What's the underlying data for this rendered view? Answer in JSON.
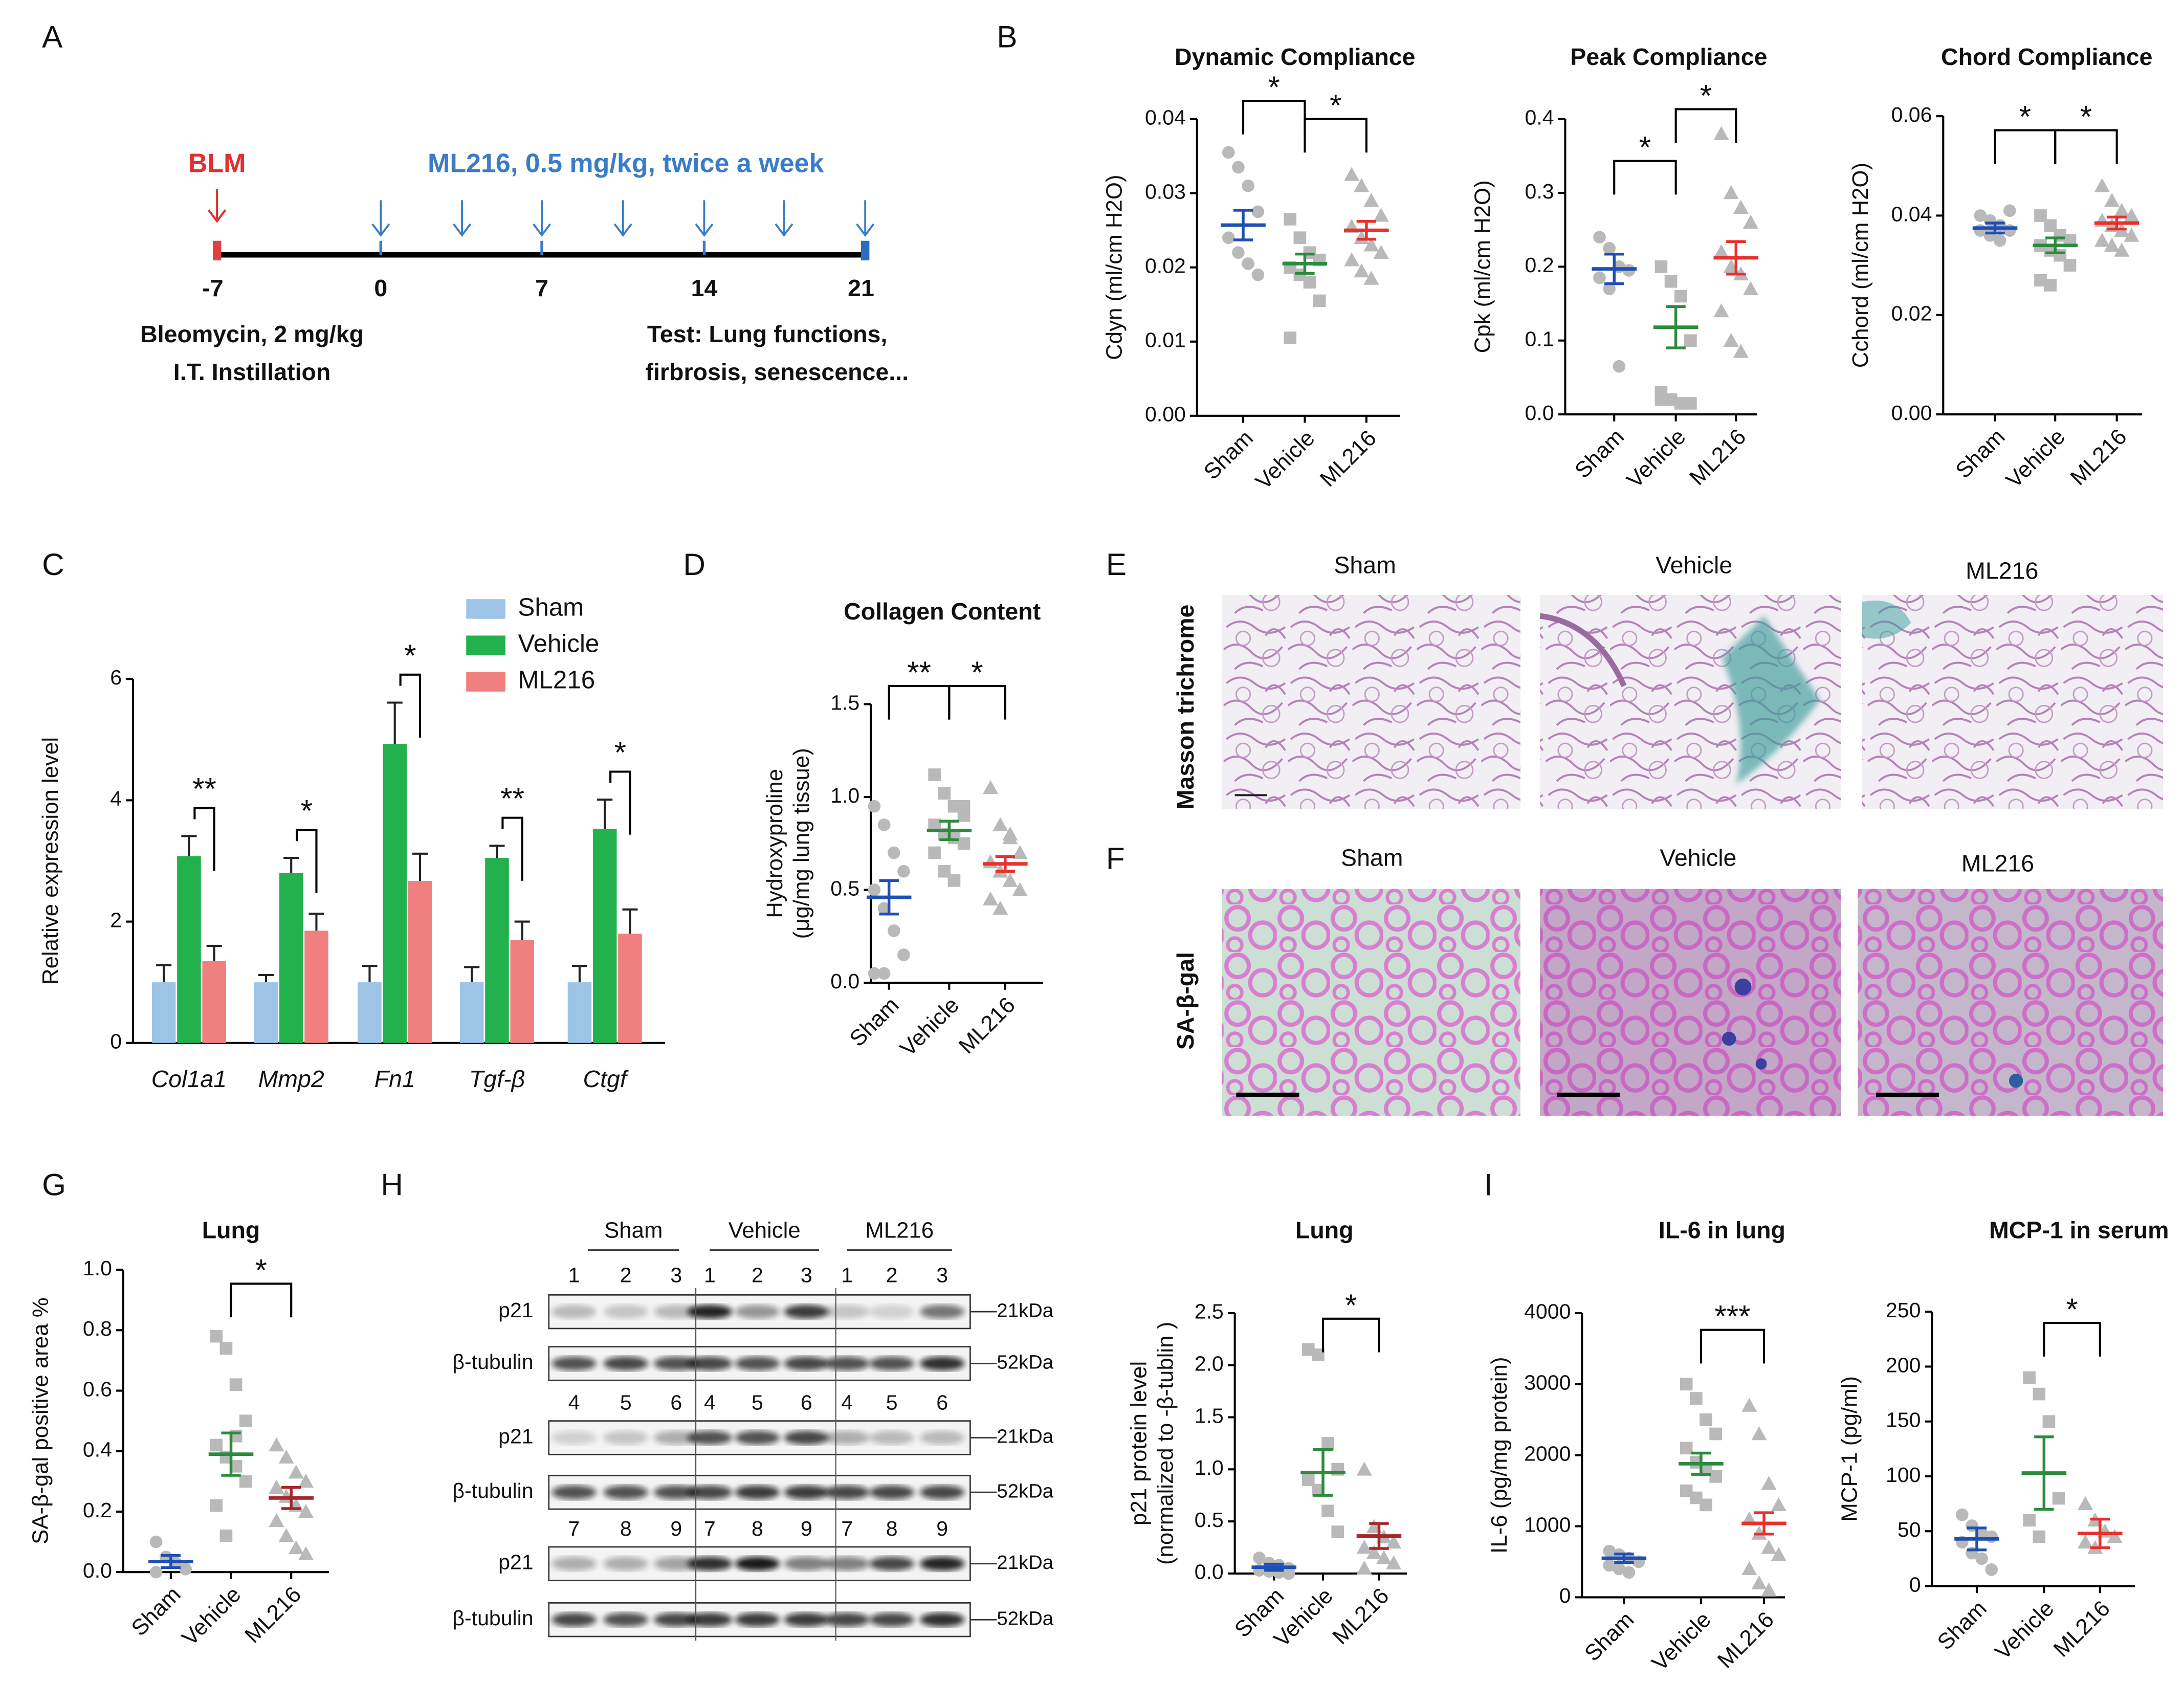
{
  "panel_labels": [
    "A",
    "B",
    "C",
    "D",
    "E",
    "F",
    "G",
    "H",
    "I"
  ],
  "timeline": {
    "drug": "BLM",
    "treatment": "ML216, 0.5 mg/kg, twice a week",
    "days": [
      "-7",
      "0",
      "7",
      "14",
      "21"
    ],
    "left_note": [
      "Bleomycin, 2 mg/kg",
      "I.T. Instillation"
    ],
    "right_note": [
      "Test: Lung functions,",
      "firbrosis, senescence..."
    ]
  },
  "histology_e": {
    "row_label": "Masson trichrome",
    "groups": [
      "Sham",
      "Vehicle",
      "ML216"
    ]
  },
  "histology_f": {
    "row_label": "SA-β-gal",
    "groups": [
      "Sham",
      "Vehicle",
      "ML216"
    ]
  },
  "blot": {
    "groups": [
      "Sham",
      "Vehicle",
      "ML216"
    ],
    "lanes": [
      [
        "1",
        "2",
        "3"
      ],
      [
        "4",
        "5",
        "6"
      ],
      [
        "7",
        "8",
        "9"
      ]
    ],
    "proteins": [
      "p21",
      "β-tubulin"
    ],
    "sizes": [
      "21kDa",
      "52kDa"
    ]
  },
  "chart_data": [
    {
      "type": "dot",
      "title": "Dynamic Compliance",
      "y_label": [
        "Cdyn (ml/cm H2O)"
      ],
      "categories": [
        "Sham",
        "Vehicle",
        "ML216"
      ],
      "colors": [
        "#1f4fb4",
        "#2d8a3e",
        "#e8302c"
      ],
      "point_color": "#b9b9b9",
      "points": [
        [
          0.0355,
          0.0335,
          0.031,
          0.0275,
          0.024,
          0.022,
          0.0205,
          0.019
        ],
        [
          0.0265,
          0.024,
          0.022,
          0.021,
          0.02,
          0.019,
          0.018,
          0.0155,
          0.0105
        ],
        [
          0.0325,
          0.031,
          0.029,
          0.027,
          0.0255,
          0.024,
          0.023,
          0.022,
          0.021,
          0.0195,
          0.0185
        ]
      ],
      "means": [
        0.0257,
        0.0205,
        0.025
      ],
      "errors": [
        0.002,
        0.0013,
        0.0012
      ],
      "ylim": [
        0,
        0.04
      ],
      "yticks": [
        {
          "value": 0,
          "label": "0.00"
        },
        0.01,
        0.02,
        0.03,
        0.04
      ],
      "annotations": [
        "*",
        "*"
      ]
    },
    {
      "type": "dot",
      "title": "Peak Compliance",
      "y_label": [
        "Cpk (ml/cm H2O)"
      ],
      "categories": [
        "Sham",
        "Vehicle",
        "ML216"
      ],
      "colors": [
        "#1f4fb4",
        "#2d8a3e",
        "#e8302c"
      ],
      "point_color": "#b9b9b9",
      "points": [
        [
          0.24,
          0.225,
          0.2,
          0.195,
          0.185,
          0.17,
          0.065
        ],
        [
          0.2,
          0.18,
          0.16,
          0.1,
          0.03,
          0.02,
          0.015,
          0.015,
          0.02
        ],
        [
          0.38,
          0.3,
          0.28,
          0.26,
          0.22,
          0.2,
          0.19,
          0.17,
          0.14,
          0.1,
          0.085
        ]
      ],
      "means": [
        0.197,
        0.118,
        0.212
      ],
      "errors": [
        0.02,
        0.028,
        0.022
      ],
      "ylim": [
        0,
        0.4
      ],
      "yticks": [
        {
          "value": 0,
          "label": "0.0"
        },
        0.1,
        0.2,
        0.3,
        0.4
      ],
      "annotations": [
        "*",
        "*"
      ]
    },
    {
      "type": "dot",
      "title": "Chord Compliance",
      "y_label": [
        "Cchord (ml/cm H2O)"
      ],
      "categories": [
        "Sham",
        "Vehicle",
        "ML216"
      ],
      "colors": [
        "#1f4fb4",
        "#2d8a3e",
        "#e8302c"
      ],
      "point_color": "#b9b9b9",
      "points": [
        [
          0.04,
          0.039,
          0.038,
          0.037,
          0.037,
          0.036,
          0.035,
          0.041
        ],
        [
          0.04,
          0.038,
          0.036,
          0.035,
          0.034,
          0.033,
          0.032,
          0.03,
          0.027,
          0.026
        ],
        [
          0.046,
          0.043,
          0.041,
          0.04,
          0.039,
          0.038,
          0.037,
          0.036,
          0.035,
          0.034,
          0.033
        ]
      ],
      "means": [
        0.0375,
        0.034,
        0.0385
      ],
      "errors": [
        0.001,
        0.0015,
        0.0012
      ],
      "ylim": [
        0,
        0.06
      ],
      "yticks": [
        {
          "value": 0,
          "label": "0.00"
        },
        0.02,
        0.04,
        0.06
      ],
      "annotations": [
        "*",
        "*"
      ]
    },
    {
      "type": "bar",
      "y_label": [
        "Relative expression level"
      ],
      "categories": [
        "Col1a1",
        "Mmp2",
        "Fn1",
        "Tgf-β",
        "Ctgf"
      ],
      "series": [
        {
          "name": "Sham",
          "color": "#9dc3e6",
          "values": [
            1,
            1,
            1,
            1,
            1
          ],
          "errors": [
            0.28,
            0.12,
            0.27,
            0.25,
            0.27
          ]
        },
        {
          "name": "Vehicle",
          "color": "#22b14c",
          "values": [
            3.08,
            2.8,
            4.93,
            3.05,
            3.53
          ],
          "errors": [
            0.33,
            0.25,
            0.68,
            0.2,
            0.48
          ]
        },
        {
          "name": "ML216",
          "color": "#f08080",
          "values": [
            1.35,
            1.85,
            2.67,
            1.7,
            1.8
          ],
          "errors": [
            0.25,
            0.28,
            0.45,
            0.3,
            0.4
          ]
        }
      ],
      "ylim": [
        0,
        6
      ],
      "yticks": [
        0,
        2,
        4,
        6
      ],
      "annotations": [
        "**",
        "*",
        "*",
        "**",
        "*"
      ],
      "legend": "upper right"
    },
    {
      "type": "dot",
      "title": "Collagen Content",
      "y_label": [
        "Hydroxyproline",
        "(μg/mg lung tissue)"
      ],
      "categories": [
        "Sham",
        "Vehicle",
        "ML216"
      ],
      "colors": [
        "#1f4fb4",
        "#2d8a3e",
        "#e8302c"
      ],
      "point_color": "#b9b9b9",
      "points": [
        [
          0.95,
          0.85,
          0.7,
          0.6,
          0.5,
          0.4,
          0.28,
          0.15,
          0.05,
          0.05
        ],
        [
          1.12,
          1.02,
          0.95,
          0.9,
          0.85,
          0.8,
          0.78,
          0.75,
          0.7,
          0.6,
          0.55,
          0.95
        ],
        [
          1.05,
          0.85,
          0.8,
          0.7,
          0.65,
          0.6,
          0.55,
          0.5,
          0.45,
          0.4,
          0.78
        ]
      ],
      "means": [
        0.46,
        0.82,
        0.64
      ],
      "errors": [
        0.09,
        0.05,
        0.04
      ],
      "ylim": [
        0,
        1.5
      ],
      "yticks": [
        {
          "value": 0,
          "label": "0.0"
        },
        0.5,
        {
          "value": 1,
          "label": "1.0"
        },
        1.5
      ],
      "annotations": [
        "**",
        "*"
      ]
    },
    {
      "type": "dot",
      "title": "Lung",
      "y_label": [
        "SA-β-gal positive area %"
      ],
      "categories": [
        "Sham",
        "Vehicle",
        "ML216"
      ],
      "colors": [
        "#1f4fb4",
        "#2d8a3e",
        "#a3272b"
      ],
      "point_color": "#b9b9b9",
      "points": [
        [
          0.1,
          0.05,
          0.03,
          0.01,
          0
        ],
        [
          0.78,
          0.74,
          0.62,
          0.5,
          0.42,
          0.38,
          0.35,
          0.3,
          0.22,
          0.12,
          0.45
        ],
        [
          0.42,
          0.38,
          0.33,
          0.3,
          0.28,
          0.25,
          0.22,
          0.2,
          0.17,
          0.12,
          0.08,
          0.06
        ]
      ],
      "means": [
        0.035,
        0.39,
        0.245
      ],
      "errors": [
        0.02,
        0.07,
        0.035
      ],
      "ylim": [
        0,
        1
      ],
      "yticks": [
        {
          "value": 0,
          "label": "0.0"
        },
        0.2,
        0.4,
        0.6,
        0.8,
        {
          "value": 1,
          "label": "1.0"
        }
      ],
      "annotations": [
        "*"
      ]
    },
    {
      "type": "dot",
      "title": "Lung",
      "y_label": [
        "p21 protein level",
        "(normalized to -β-tublin )"
      ],
      "categories": [
        "Sham",
        "Vehicle",
        "ML216"
      ],
      "colors": [
        "#1f4fb4",
        "#2d8a3e",
        "#a3272b"
      ],
      "point_color": "#b9b9b9",
      "points": [
        [
          0.15,
          0.1,
          0.08,
          0.05,
          0.03,
          0.02,
          0.01,
          0
        ],
        [
          2.15,
          2.1,
          1.25,
          1,
          0.9,
          0.8,
          0.6,
          0.4
        ],
        [
          1,
          0.45,
          0.35,
          0.3,
          0.25,
          0.2,
          0.15,
          0.1,
          0.05
        ]
      ],
      "means": [
        0.06,
        0.97,
        0.36
      ],
      "errors": [
        0.03,
        0.22,
        0.12
      ],
      "ylim": [
        0,
        2.5
      ],
      "yticks": [
        {
          "value": 0,
          "label": "0.0"
        },
        0.5,
        {
          "value": 1,
          "label": "1.0"
        },
        1.5,
        {
          "value": 2,
          "label": "2.0"
        },
        2.5
      ],
      "annotations": [
        "*"
      ]
    },
    {
      "type": "dot",
      "title": "IL-6 in lung",
      "y_label": [
        "IL-6 (pg/mg protein)"
      ],
      "categories": [
        "Sham",
        "Vehicle",
        "ML216"
      ],
      "colors": [
        "#1f4fb4",
        "#2d8a3e",
        "#e8302c"
      ],
      "point_color": "#b9b9b9",
      "points": [
        [
          650,
          600,
          550,
          500,
          450,
          400,
          350
        ],
        [
          3000,
          2800,
          2500,
          2300,
          2100,
          1900,
          1800,
          1700,
          1500,
          1400,
          1300
        ],
        [
          2700,
          2300,
          1600,
          1300,
          1100,
          900,
          700,
          600,
          400,
          200,
          100
        ]
      ],
      "means": [
        550,
        1880,
        1040
      ],
      "errors": [
        60,
        150,
        150
      ],
      "ylim": [
        0,
        4000
      ],
      "yticks": [
        0,
        1000,
        2000,
        3000,
        4000
      ],
      "annotations": [
        "***"
      ]
    },
    {
      "type": "dot",
      "title": "MCP-1 in serum",
      "y_label": [
        "MCP-1 (pg/ml)"
      ],
      "categories": [
        "Sham",
        "Vehicle",
        "ML216"
      ],
      "colors": [
        "#1f4fb4",
        "#2d8a3e",
        "#e8302c"
      ],
      "point_color": "#b9b9b9",
      "points": [
        [
          65,
          55,
          48,
          45,
          40,
          30,
          25,
          15
        ],
        [
          190,
          175,
          150,
          80,
          60,
          45
        ],
        [
          75,
          60,
          50,
          45,
          40,
          35
        ]
      ],
      "means": [
        43,
        103,
        48
      ],
      "errors": [
        10,
        33,
        13
      ],
      "ylim": [
        0,
        250
      ],
      "yticks": [
        0,
        50,
        100,
        150,
        200,
        250
      ],
      "annotations": [
        "*"
      ]
    }
  ]
}
